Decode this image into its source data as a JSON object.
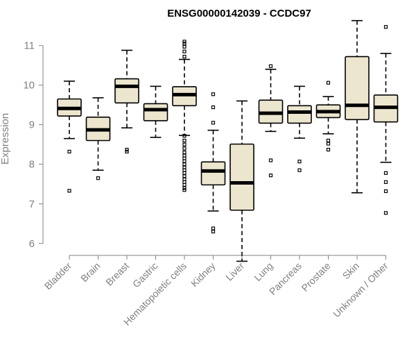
{
  "chart_data": {
    "type": "boxplot",
    "title": "ENSG00000142039 - CCDC97",
    "xlabel": "",
    "ylabel": "Expression",
    "ylim": [
      5.4,
      11.8
    ],
    "yticks": [
      6,
      7,
      8,
      9,
      10,
      11
    ],
    "grid": false,
    "colors": {
      "box_fill": "#ede6cf",
      "stroke": "#000000",
      "axis": "#808080",
      "text": "#808080"
    },
    "categories": [
      "Bladder",
      "Brain",
      "Breast",
      "Gastric",
      "Hematopoietic cells",
      "Kidney",
      "Liver",
      "Lung",
      "Pancreas",
      "Prostate",
      "Skin",
      "Unknown / Other"
    ],
    "boxes": [
      {
        "category": "Bladder",
        "whisker_low": 8.65,
        "q1": 9.22,
        "median": 9.41,
        "q3": 9.65,
        "whisker_high": 10.1,
        "outliers": [
          8.32,
          7.33
        ]
      },
      {
        "category": "Brain",
        "whisker_low": 7.85,
        "q1": 8.6,
        "median": 8.87,
        "q3": 9.19,
        "whisker_high": 9.68,
        "outliers": [
          7.65
        ]
      },
      {
        "category": "Breast",
        "whisker_low": 8.92,
        "q1": 9.55,
        "median": 9.97,
        "q3": 10.16,
        "whisker_high": 10.88,
        "outliers": [
          8.37,
          8.32
        ]
      },
      {
        "category": "Gastric",
        "whisker_low": 8.68,
        "q1": 9.1,
        "median": 9.38,
        "q3": 9.53,
        "whisker_high": 9.97,
        "outliers": []
      },
      {
        "category": "Hematopoietic cells",
        "whisker_low": 8.73,
        "q1": 9.48,
        "median": 9.76,
        "q3": 9.96,
        "whisker_high": 10.65,
        "outliers": [
          11.1,
          11.05,
          10.97,
          10.85,
          10.72,
          8.72,
          8.6,
          8.5,
          8.4,
          8.3,
          8.22,
          8.15,
          8.08,
          8.0,
          7.92,
          7.85,
          7.78,
          7.7,
          7.62,
          7.55,
          7.48,
          7.4,
          7.35
        ]
      },
      {
        "category": "Kidney",
        "whisker_low": 6.82,
        "q1": 7.48,
        "median": 7.83,
        "q3": 8.06,
        "whisker_high": 8.86,
        "outliers": [
          9.77,
          9.44,
          9.05,
          6.38,
          6.3
        ]
      },
      {
        "category": "Liver",
        "whisker_low": 5.55,
        "q1": 6.84,
        "median": 7.53,
        "q3": 8.51,
        "whisker_high": 9.6,
        "outliers": []
      },
      {
        "category": "Lung",
        "whisker_low": 8.83,
        "q1": 9.04,
        "median": 9.29,
        "q3": 9.62,
        "whisker_high": 10.4,
        "outliers": [
          10.48,
          8.1,
          7.72
        ]
      },
      {
        "category": "Pancreas",
        "whisker_low": 8.66,
        "q1": 9.04,
        "median": 9.32,
        "q3": 9.48,
        "whisker_high": 9.97,
        "outliers": [
          8.07,
          7.85
        ]
      },
      {
        "category": "Prostate",
        "whisker_low": 8.77,
        "q1": 9.18,
        "median": 9.33,
        "q3": 9.5,
        "whisker_high": 9.71,
        "outliers": [
          10.06,
          8.6,
          8.52,
          8.37
        ]
      },
      {
        "category": "Skin",
        "whisker_low": 7.28,
        "q1": 9.13,
        "median": 9.49,
        "q3": 10.72,
        "whisker_high": 11.63,
        "outliers": []
      },
      {
        "category": "Unknown / Other",
        "whisker_low": 8.05,
        "q1": 9.07,
        "median": 9.44,
        "q3": 9.75,
        "whisker_high": 10.8,
        "outliers": [
          11.47,
          7.78,
          7.55,
          7.32,
          6.77
        ]
      }
    ]
  }
}
